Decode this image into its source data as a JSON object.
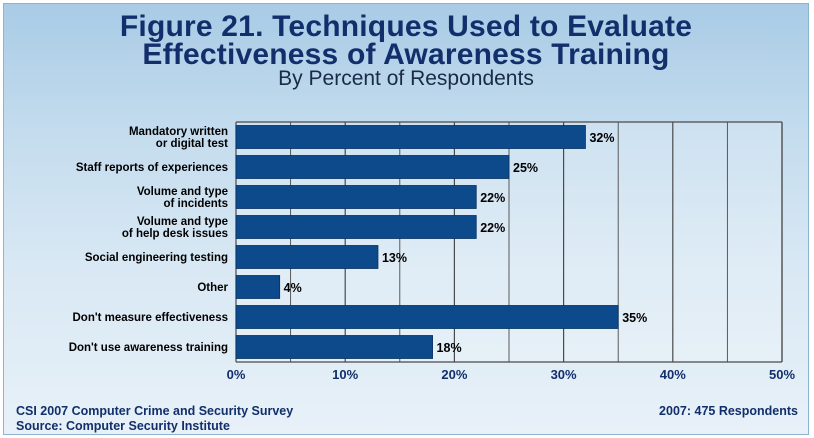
{
  "header": {
    "title_line1": "Figure 21. Techniques Used to Evaluate",
    "title_line2": "Effectiveness of Awareness Training",
    "subtitle": "By Percent of Respondents"
  },
  "footer": {
    "source_line1": "CSI 2007 Computer Crime and Security Survey",
    "source_line2": "Source: Computer Security Institute",
    "respondents": "2007: 475 Respondents"
  },
  "colors": {
    "bar": "#0c4a8c",
    "title": "#122f6b",
    "grid": "#4a4a4a"
  },
  "chart_data": {
    "type": "bar",
    "orientation": "horizontal",
    "title": "Figure 21. Techniques Used to Evaluate Effectiveness of Awareness Training",
    "subtitle": "By Percent of Respondents",
    "categories": [
      [
        "Mandatory written",
        "or digital test"
      ],
      [
        "Staff reports of experiences"
      ],
      [
        "Volume and type",
        "of incidents"
      ],
      [
        "Volume and type",
        "of help desk issues"
      ],
      [
        "Social engineering testing"
      ],
      [
        "Other"
      ],
      [
        "Don't measure effectiveness"
      ],
      [
        "Don't use awareness training"
      ]
    ],
    "values": [
      32,
      25,
      22,
      22,
      13,
      4,
      35,
      18
    ],
    "value_labels": [
      "32%",
      "25%",
      "22%",
      "22%",
      "13%",
      "4%",
      "35%",
      "18%"
    ],
    "xlim": [
      0,
      50
    ],
    "xticks": [
      0,
      10,
      20,
      30,
      40,
      50
    ],
    "xtick_labels": [
      "0%",
      "10%",
      "20%",
      "30%",
      "40%",
      "50%"
    ],
    "grid": true,
    "legend": "none"
  }
}
